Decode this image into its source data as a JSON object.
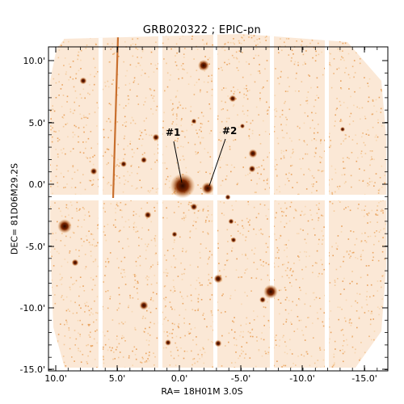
{
  "title": "GRB020322 ; EPIC-pn",
  "xlabel": "RA= 18H01M 3.0S",
  "ylabel": "DEC= 81D06M29.2S",
  "x_ticks": [
    "10.0'",
    "5.0'",
    "0.0'",
    "-5.0'",
    "-10.0'",
    "-15.0'"
  ],
  "y_ticks": [
    "10.0'",
    "5.0'",
    "0.0'",
    "-5.0'",
    "-10.0'",
    "-15.0'"
  ],
  "annotations": [
    {
      "label": "#1"
    },
    {
      "label": "#2"
    }
  ],
  "colors": {
    "background": "#ffffff",
    "counts_light": "#f3c898",
    "counts_mid": "#d9822f",
    "source_core": "#5a1a00",
    "axis": "#000000"
  }
}
